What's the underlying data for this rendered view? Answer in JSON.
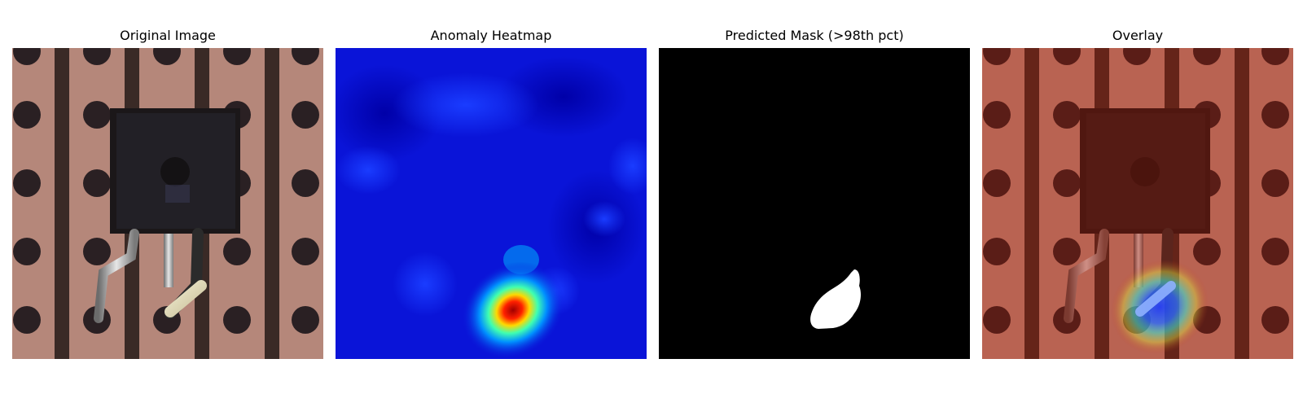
{
  "panels": [
    {
      "title": "Original Image"
    },
    {
      "title": "Anomaly Heatmap"
    },
    {
      "title": "Predicted Mask (>98th pct)"
    },
    {
      "title": "Overlay"
    }
  ],
  "colors": {
    "pcb_copper": "#b5877a",
    "pcb_trace_dark": "#3a2a26",
    "component_body": "#1b1719",
    "heatmap_low": "#0a14d8",
    "heatmap_high": "#b00000",
    "mask_background": "#000000",
    "mask_foreground": "#ffffff"
  }
}
